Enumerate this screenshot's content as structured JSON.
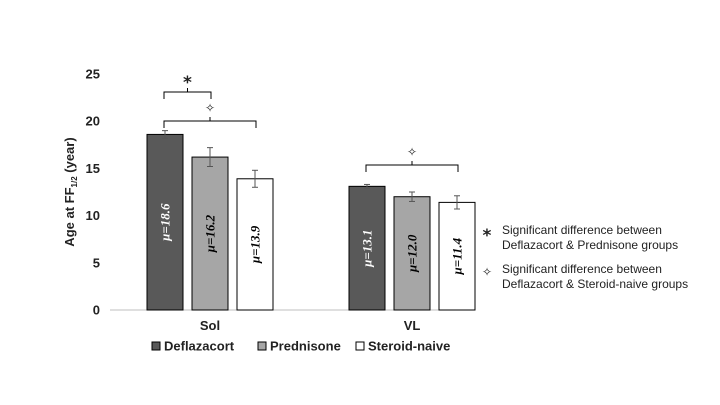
{
  "chart_data": {
    "type": "bar",
    "title": "",
    "xlabel": "",
    "ylabel": "Age at FF",
    "ylabel_sub": "1/2",
    "ylabel_suffix": " (year)",
    "ylim": [
      0,
      25
    ],
    "yticks": [
      0,
      5,
      10,
      15,
      20,
      25
    ],
    "categories": [
      "Sol",
      "VL"
    ],
    "series": [
      {
        "name": "Deflazacort",
        "color": "#595959",
        "values": [
          18.6,
          13.1
        ],
        "errors": [
          0.4,
          0.2
        ],
        "labels": [
          "μ=18.6",
          "μ=13.1"
        ]
      },
      {
        "name": "Prednisone",
        "color": "#a6a6a6",
        "values": [
          16.2,
          12.0
        ],
        "errors": [
          1.0,
          0.5
        ],
        "labels": [
          "μ=16.2",
          "μ=12.0"
        ]
      },
      {
        "name": "Steroid-naive",
        "color": "#ffffff",
        "values": [
          13.9,
          11.4
        ],
        "errors": [
          0.9,
          0.7
        ],
        "labels": [
          "μ=13.9",
          "μ=11.4"
        ]
      }
    ],
    "significance_marks": [
      {
        "category": "Sol",
        "from_series": 0,
        "to_series": 1,
        "symbol": "*"
      },
      {
        "category": "Sol",
        "from_series": 0,
        "to_series": 2,
        "symbol": "✧"
      },
      {
        "category": "VL",
        "from_series": 0,
        "to_series": 2,
        "symbol": "✧"
      }
    ],
    "notes": [
      {
        "symbol": "*",
        "line1": "Significant difference between",
        "line2": "Deflazacort & Prednisone groups"
      },
      {
        "symbol": "✧",
        "line1": "Significant difference between",
        "line2": "Deflazacort & Steroid-naive groups"
      }
    ],
    "legend": "bottom"
  }
}
